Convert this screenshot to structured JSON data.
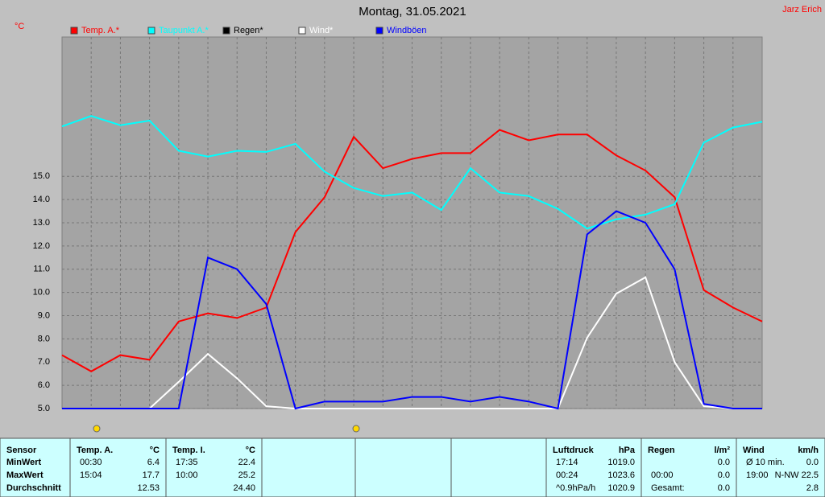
{
  "chart_data": {
    "type": "line",
    "title": "Montag, 31.05.2021",
    "author": "Jarz Erich",
    "y_label": "°C",
    "x": [
      0,
      1,
      2,
      3,
      4,
      5,
      6,
      7,
      8,
      9,
      10,
      11,
      12,
      13,
      14,
      15,
      16,
      17,
      18,
      19,
      20,
      21,
      22,
      23,
      24
    ],
    "xlim": [
      0,
      24
    ],
    "ylim": [
      5,
      21
    ],
    "yticks": [
      {
        "value": 5,
        "label": "5.0"
      },
      {
        "value": 6,
        "label": "6.0"
      },
      {
        "value": 7,
        "label": "7.0"
      },
      {
        "value": 8,
        "label": "8.0"
      },
      {
        "value": 9,
        "label": "9.0"
      },
      {
        "value": 10,
        "label": "10.0"
      },
      {
        "value": 11,
        "label": "11.0"
      },
      {
        "value": 12,
        "label": "12.0"
      },
      {
        "value": 13,
        "label": "13.0"
      },
      {
        "value": 14,
        "label": "14.0"
      },
      {
        "value": 15,
        "label": "15.0"
      }
    ],
    "grid": true,
    "series": [
      {
        "name": "Temp. A.*",
        "color": "#ff0000",
        "values": [
          7.3,
          6.6,
          7.3,
          7.1,
          8.75,
          9.1,
          8.9,
          9.35,
          12.6,
          14.1,
          16.7,
          15.35,
          15.75,
          16.0,
          16.0,
          17.0,
          16.55,
          16.8,
          16.8,
          15.9,
          15.25,
          14.1,
          10.1,
          9.35,
          8.75
        ]
      },
      {
        "name": "Taupunkt A.*",
        "color": "#00ffff",
        "values": [
          17.15,
          17.6,
          17.2,
          17.4,
          16.1,
          15.85,
          16.1,
          16.05,
          16.4,
          15.2,
          14.5,
          14.15,
          14.3,
          13.55,
          15.35,
          14.3,
          14.15,
          13.6,
          12.75,
          13.15,
          13.35,
          13.8,
          16.45,
          17.1,
          17.35
        ]
      },
      {
        "name": "Regen*",
        "color": "#000000"
      },
      {
        "name": "Wind*",
        "color": "#ffffff",
        "values": [
          5,
          5,
          5,
          5,
          6.15,
          7.35,
          6.3,
          5.1,
          5,
          5,
          5,
          5,
          5,
          5,
          5,
          5,
          5,
          5,
          8.05,
          9.95,
          10.65,
          7.0,
          5.1,
          5,
          5
        ]
      },
      {
        "name": "Windböen",
        "color": "#0000ff",
        "values": [
          5,
          5,
          5,
          5,
          5,
          11.5,
          11.0,
          9.5,
          5,
          5.3,
          5.3,
          5.3,
          5.5,
          5.5,
          5.3,
          5.5,
          5.3,
          5,
          12.5,
          13.5,
          13.0,
          11.0,
          5.2,
          5,
          5
        ]
      }
    ]
  },
  "table": {
    "row_labels": [
      "Sensor",
      "MinWert",
      "MaxWert",
      "Durchschnitt"
    ],
    "panels": [
      {
        "header": [
          "Temp. A.",
          "°C"
        ],
        "rows": [
          [
            "00:30",
            "6.4"
          ],
          [
            "15:04",
            "17.7"
          ],
          [
            null,
            "12.53"
          ]
        ]
      },
      {
        "header": [
          "Temp. I.",
          "°C"
        ],
        "rows": [
          [
            "17:35",
            "22.4"
          ],
          [
            "10:00",
            "25.2"
          ],
          [
            null,
            "24.40"
          ]
        ]
      },
      {
        "header": [
          "Luftdruck",
          "hPa"
        ],
        "rows": [
          [
            "17:14",
            "1019.0"
          ],
          [
            "00:24",
            "1023.6"
          ],
          [
            "^0.9hPa/h",
            "1020.9"
          ]
        ]
      },
      {
        "header": [
          "Regen",
          "l/m²"
        ],
        "rows": [
          [
            null,
            "0.0"
          ],
          [
            "00:00",
            "0.0"
          ],
          [
            "Gesamt:",
            "0.0"
          ]
        ]
      },
      {
        "header": [
          "Wind",
          "km/h"
        ],
        "rows": [
          [
            "Ø 10 min.",
            "0.0"
          ],
          [
            "19:00",
            "N-NW 22.5"
          ],
          [
            null,
            "2.8"
          ]
        ]
      }
    ]
  }
}
